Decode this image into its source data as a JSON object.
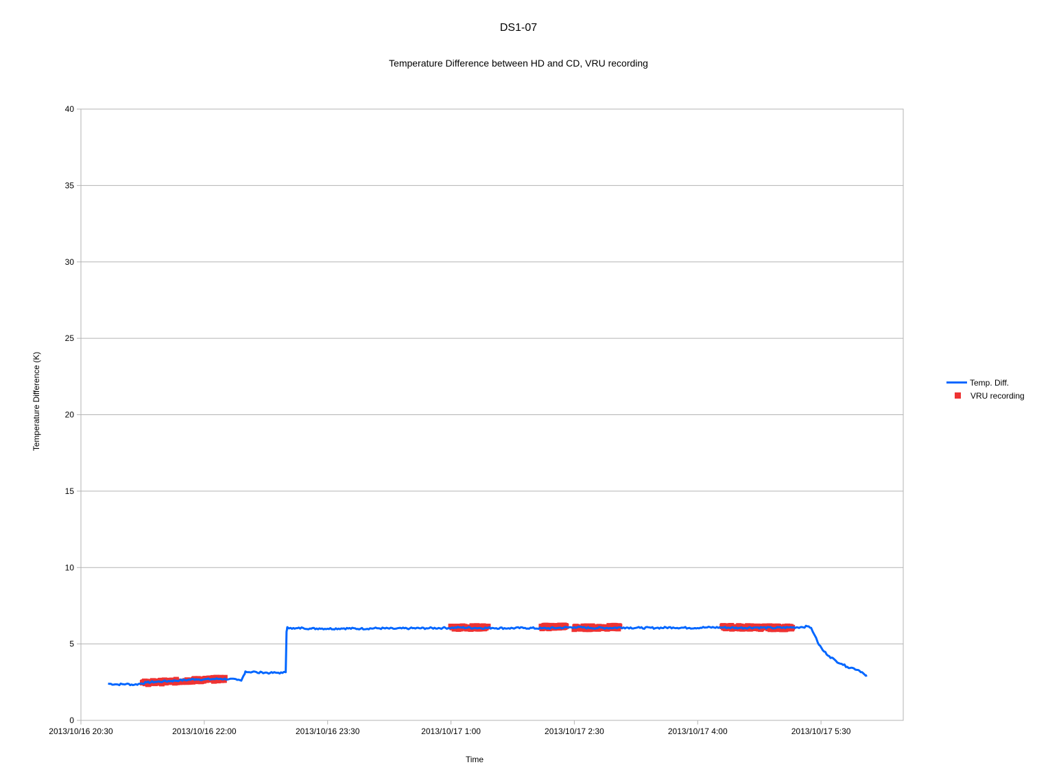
{
  "chart_data": {
    "type": "line",
    "title": "DS1-07",
    "subtitle": "Temperature Difference between HD and CD, VRU recording",
    "xlabel": "Time",
    "ylabel": "Temperature Difference (K)",
    "x_unit": "hours since 2013/10/16 20:30",
    "xlim": [
      0,
      10
    ],
    "ylim": [
      0,
      40
    ],
    "yticks": [
      0,
      5,
      10,
      15,
      20,
      25,
      30,
      35,
      40
    ],
    "xticks": [
      {
        "x": 0,
        "label": "2013/10/16 20:30"
      },
      {
        "x": 1.5,
        "label": "2013/10/16 22:00"
      },
      {
        "x": 3,
        "label": "2013/10/16 23:30"
      },
      {
        "x": 4.5,
        "label": "2013/10/17 1:00"
      },
      {
        "x": 6,
        "label": "2013/10/17 2:30"
      },
      {
        "x": 7.5,
        "label": "2013/10/17 4:00"
      },
      {
        "x": 9,
        "label": "2013/10/17 5:30"
      }
    ],
    "grid": true,
    "legend_position": "right",
    "series": [
      {
        "name": "Temp. Diff.",
        "kind": "line",
        "color": "#0066ff",
        "points": [
          [
            0.33,
            2.4
          ],
          [
            0.45,
            2.35
          ],
          [
            0.55,
            2.38
          ],
          [
            0.65,
            2.33
          ],
          [
            0.72,
            2.4
          ],
          [
            0.8,
            2.48
          ],
          [
            0.9,
            2.52
          ],
          [
            1.0,
            2.55
          ],
          [
            1.1,
            2.58
          ],
          [
            1.2,
            2.62
          ],
          [
            1.3,
            2.65
          ],
          [
            1.4,
            2.7
          ],
          [
            1.5,
            2.68
          ],
          [
            1.6,
            2.7
          ],
          [
            1.7,
            2.72
          ],
          [
            1.8,
            2.7
          ],
          [
            1.9,
            2.65
          ],
          [
            1.95,
            2.6
          ],
          [
            1.98,
            2.95
          ],
          [
            2.0,
            3.2
          ],
          [
            2.05,
            3.15
          ],
          [
            2.1,
            3.2
          ],
          [
            2.15,
            3.1
          ],
          [
            2.2,
            3.15
          ],
          [
            2.3,
            3.1
          ],
          [
            2.4,
            3.12
          ],
          [
            2.45,
            3.1
          ],
          [
            2.49,
            3.15
          ],
          [
            2.5,
            5.8
          ],
          [
            2.51,
            6.1
          ],
          [
            2.55,
            6.05
          ],
          [
            2.6,
            6.0
          ],
          [
            2.7,
            6.05
          ],
          [
            2.8,
            6.0
          ],
          [
            2.9,
            6.02
          ],
          [
            3.0,
            6.0
          ],
          [
            3.2,
            6.02
          ],
          [
            3.4,
            6.0
          ],
          [
            3.6,
            6.03
          ],
          [
            3.8,
            6.0
          ],
          [
            4.0,
            6.02
          ],
          [
            4.2,
            6.03
          ],
          [
            4.4,
            6.05
          ],
          [
            4.5,
            6.05
          ],
          [
            4.6,
            6.08
          ],
          [
            4.8,
            6.05
          ],
          [
            5.0,
            6.05
          ],
          [
            5.2,
            6.03
          ],
          [
            5.4,
            6.05
          ],
          [
            5.6,
            6.02
          ],
          [
            5.8,
            6.05
          ],
          [
            6.0,
            6.1
          ],
          [
            6.2,
            6.05
          ],
          [
            6.4,
            6.05
          ],
          [
            6.6,
            6.08
          ],
          [
            6.8,
            6.05
          ],
          [
            7.0,
            6.05
          ],
          [
            7.2,
            6.08
          ],
          [
            7.4,
            6.05
          ],
          [
            7.6,
            6.08
          ],
          [
            7.8,
            6.08
          ],
          [
            8.0,
            6.05
          ],
          [
            8.2,
            6.08
          ],
          [
            8.4,
            6.05
          ],
          [
            8.6,
            6.08
          ],
          [
            8.75,
            6.1
          ],
          [
            8.85,
            6.15
          ],
          [
            8.88,
            6.05
          ],
          [
            8.92,
            5.6
          ],
          [
            8.96,
            5.1
          ],
          [
            9.02,
            4.6
          ],
          [
            9.1,
            4.2
          ],
          [
            9.18,
            3.9
          ],
          [
            9.25,
            3.7
          ],
          [
            9.32,
            3.5
          ],
          [
            9.4,
            3.4
          ],
          [
            9.45,
            3.3
          ],
          [
            9.5,
            3.15
          ],
          [
            9.53,
            3.0
          ],
          [
            9.56,
            2.95
          ]
        ]
      },
      {
        "name": "VRU recording",
        "kind": "markers",
        "color": "#ee3333",
        "ranges": [
          {
            "start": 0.75,
            "end": 1.75,
            "y_start": 2.45,
            "y_end": 2.72
          },
          {
            "start": 4.5,
            "end": 4.95,
            "y_start": 6.08,
            "y_end": 6.08
          },
          {
            "start": 5.6,
            "end": 5.9,
            "y_start": 6.1,
            "y_end": 6.15
          },
          {
            "start": 6.0,
            "end": 6.55,
            "y_start": 6.05,
            "y_end": 6.1
          },
          {
            "start": 7.8,
            "end": 8.65,
            "y_start": 6.1,
            "y_end": 6.05
          }
        ]
      }
    ]
  }
}
